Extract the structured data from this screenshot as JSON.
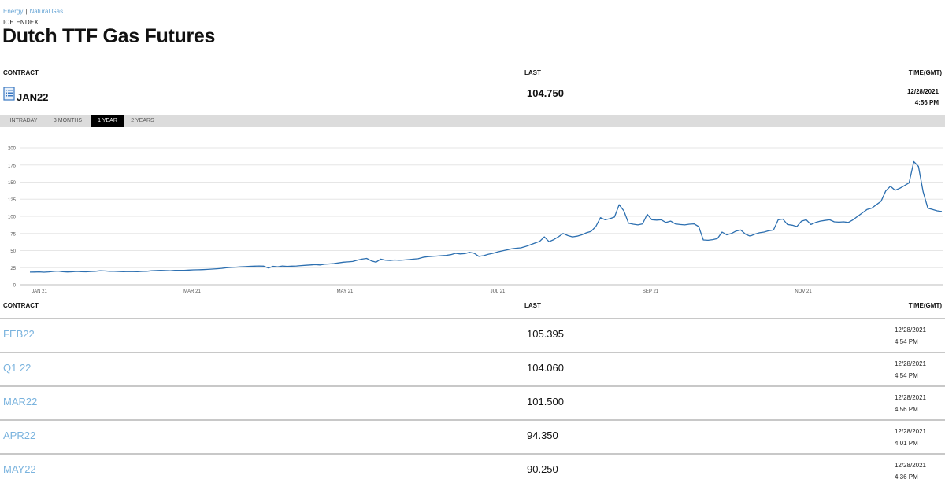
{
  "breadcrumb": {
    "item1": "Energy",
    "separator": "|",
    "item2": "Natural Gas"
  },
  "exchange": "ICE ENDEX",
  "title": "Dutch TTF Gas Futures",
  "headers": {
    "contract": "CONTRACT",
    "last": "LAST",
    "time": "TIME(GMT)"
  },
  "front": {
    "icon": "document-icon",
    "contract": "JAN22",
    "last": "104.750",
    "date": "12/28/2021",
    "time": "4:56 PM"
  },
  "tabs": [
    {
      "label": "INTRADAY",
      "active": false
    },
    {
      "label": "3 MONTHS",
      "active": false
    },
    {
      "label": "1 YEAR",
      "active": true
    },
    {
      "label": "2 YEARS",
      "active": false
    }
  ],
  "colors": {
    "line": "#2c6fb0",
    "link": "#7ab3de",
    "tabbar": "#dcdcdc",
    "grid": "#e6e6e6"
  },
  "chart_data": {
    "type": "line",
    "grid": true,
    "ylim": [
      0,
      200
    ],
    "yticks": [
      0,
      25,
      50,
      75,
      100,
      125,
      150,
      175,
      200
    ],
    "xticks": [
      "JAN 21",
      "MAR 21",
      "MAY 21",
      "JUL 21",
      "SEP 21",
      "NOV 21"
    ],
    "series": [
      {
        "values": [
          18.5,
          18.6,
          18.8,
          18.4,
          18.9,
          19.5,
          20,
          19.2,
          18.7,
          19,
          19.5,
          19.2,
          19,
          19.4,
          19.8,
          20.5,
          20.2,
          19.8,
          19.6,
          19.4,
          19.2,
          19.4,
          19.3,
          19.2,
          19.5,
          19.8,
          20.5,
          20.8,
          21,
          20.8,
          20.6,
          21,
          21,
          21.2,
          21.5,
          21.8,
          22,
          22.2,
          22.5,
          23,
          23.5,
          24,
          25,
          25.5,
          25.8,
          26.2,
          26.5,
          27,
          27.2,
          27.5,
          27.2,
          24.5,
          27,
          26.2,
          27.5,
          26.8,
          27.2,
          27.5,
          28,
          28.5,
          29,
          29.5,
          29,
          30,
          30.5,
          31,
          32,
          33,
          33.5,
          34,
          36,
          37.5,
          38.5,
          35,
          33,
          37.5,
          36,
          35.5,
          36.2,
          35.8,
          36.2,
          36.8,
          37.5,
          38,
          40,
          41,
          41.5,
          42,
          42.5,
          43,
          44,
          46,
          45,
          45.5,
          47.5,
          46,
          41.5,
          42.5,
          44.5,
          46,
          48,
          49.5,
          51,
          52.5,
          53.5,
          54,
          56,
          58.5,
          61,
          63.5,
          70,
          63,
          66,
          70,
          75,
          72,
          70,
          71,
          73,
          76,
          78,
          85,
          98,
          95,
          96.5,
          99,
          117,
          108,
          90,
          88.5,
          87.5,
          89,
          103,
          95,
          94.5,
          95,
          91,
          93,
          89,
          88,
          87.5,
          88.5,
          89,
          85,
          65.5,
          65,
          66,
          67.5,
          77,
          73,
          75,
          78.5,
          80,
          74,
          71,
          74,
          76,
          77,
          79,
          80,
          95,
          96,
          88,
          87,
          85,
          93,
          95,
          88,
          91,
          93,
          94,
          95,
          92,
          91.5,
          92,
          91,
          95,
          100,
          105,
          110,
          112,
          117,
          122,
          137,
          144,
          138,
          141,
          145,
          149,
          180,
          173,
          136,
          112,
          110,
          108,
          107
        ]
      }
    ]
  },
  "rows": [
    {
      "contract": "FEB22",
      "last": "105.395",
      "date": "12/28/2021",
      "time": "4:54 PM"
    },
    {
      "contract": "Q1 22",
      "last": "104.060",
      "date": "12/28/2021",
      "time": "4:54 PM"
    },
    {
      "contract": "MAR22",
      "last": "101.500",
      "date": "12/28/2021",
      "time": "4:56 PM"
    },
    {
      "contract": "APR22",
      "last": "94.350",
      "date": "12/28/2021",
      "time": "4:01 PM"
    },
    {
      "contract": "MAY22",
      "last": "90.250",
      "date": "12/28/2021",
      "time": "4:36 PM"
    }
  ]
}
